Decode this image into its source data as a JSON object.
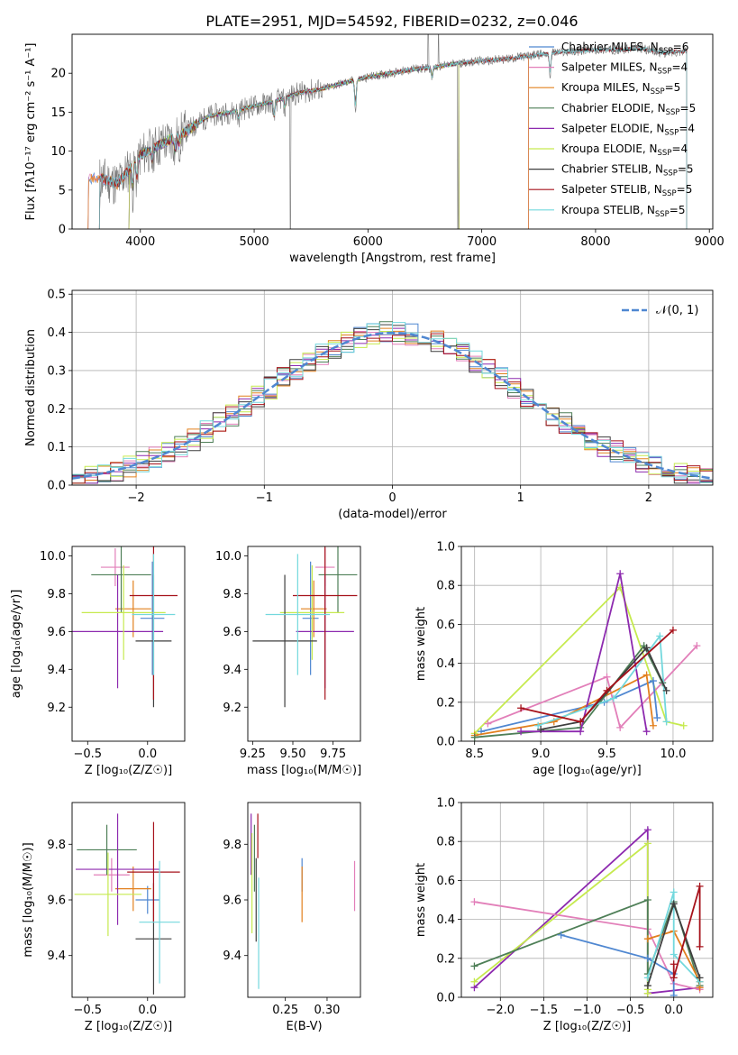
{
  "figure_title": "PLATE=2951, MJD=54592, FIBERID=0232, z=0.046",
  "colors": {
    "chabrier_miles": "#4f87d1",
    "salpeter_miles": "#e27fb9",
    "kroupa_miles": "#e2801e",
    "chabrier_elodie": "#4e7f57",
    "salpeter_elodie": "#8d2aaf",
    "kroupa_elodie": "#c6ea4f",
    "chabrier_stelib": "#3f3f3f",
    "salpeter_stelib": "#a6121b",
    "kroupa_stelib": "#73d8dd",
    "gaussian": "#4f87d1"
  },
  "chart_data": [
    {
      "id": "spectrum",
      "type": "line",
      "xlabel": "wavelength [Angstrom, rest frame]",
      "ylabel": "Flux [fλ10⁻¹⁷ erg cm⁻² s⁻¹ A⁻¹]",
      "xlim": [
        3400,
        9030
      ],
      "ylim": [
        0,
        25
      ],
      "xticks": [
        "4000",
        "5000",
        "6000",
        "7000",
        "8000",
        "9000"
      ],
      "yticks": [
        "0",
        "5",
        "10",
        "15",
        "20"
      ],
      "legend_position": "upper right",
      "legend": [
        {
          "label": "Chabrier MILES, N",
          "sub": "SSP",
          "suffix": "=6",
          "color_key": "chabrier_miles"
        },
        {
          "label": "Salpeter MILES, N",
          "sub": "SSP",
          "suffix": "=4",
          "color_key": "salpeter_miles"
        },
        {
          "label": "Kroupa MILES, N",
          "sub": "SSP",
          "suffix": "=5",
          "color_key": "kroupa_miles"
        },
        {
          "label": "Chabrier ELODIE, N",
          "sub": "SSP",
          "suffix": "=5",
          "color_key": "chabrier_elodie"
        },
        {
          "label": "Salpeter ELODIE, N",
          "sub": "SSP",
          "suffix": "=4",
          "color_key": "salpeter_elodie"
        },
        {
          "label": "Kroupa ELODIE, N",
          "sub": "SSP",
          "suffix": "=4",
          "color_key": "kroupa_elodie"
        },
        {
          "label": "Chabrier STELIB, N",
          "sub": "SSP",
          "suffix": "=5",
          "color_key": "chabrier_stelib"
        },
        {
          "label": "Salpeter STELIB, N",
          "sub": "SSP",
          "suffix": "=5",
          "color_key": "salpeter_stelib"
        },
        {
          "label": "Kroupa STELIB, N",
          "sub": "SSP",
          "suffix": "=5",
          "color_key": "kroupa_stelib"
        }
      ],
      "data_profile": {
        "x": [
          3650,
          3800,
          4000,
          4200,
          4400,
          4600,
          4800,
          5000,
          5200,
          5400,
          5600,
          5800,
          6000,
          6200,
          6400,
          6600,
          6800,
          7000,
          7200,
          7400,
          7600,
          7800,
          8000,
          8200,
          8400,
          8600,
          8800
        ],
        "y": [
          6.5,
          5.8,
          9.5,
          11.0,
          12.5,
          14.5,
          15.0,
          15.8,
          16.5,
          17.5,
          18.0,
          18.8,
          19.5,
          20.0,
          20.5,
          20.8,
          21.3,
          21.6,
          21.8,
          22.2,
          22.6,
          22.8,
          23.0,
          23.0,
          23.2,
          22.6,
          22.9
        ]
      },
      "model_ranges": {
        "miles": [
          3540,
          7410
        ],
        "elodie": [
          3900,
          6800
        ],
        "stelib": [
          3640,
          8800
        ]
      },
      "absorption_features": [
        {
          "x": 3934,
          "depth": 3.5
        },
        {
          "x": 3969,
          "depth": 3.0
        },
        {
          "x": 4102,
          "depth": 1.5
        },
        {
          "x": 4304,
          "depth": 2.0
        },
        {
          "x": 4340,
          "depth": 1.5
        },
        {
          "x": 4861,
          "depth": 1.2
        },
        {
          "x": 5175,
          "depth": 2.5
        },
        {
          "x": 5270,
          "depth": 1.5
        },
        {
          "x": 5890,
          "depth": 4.0
        },
        {
          "x": 6563,
          "depth": 1.5
        },
        {
          "x": 7600,
          "depth": 3.0
        }
      ],
      "data_spikes": [
        {
          "x": 3640,
          "low": 0
        },
        {
          "x": 5318,
          "low": 0
        },
        {
          "x": 6530,
          "high": 25
        },
        {
          "x": 6620,
          "high": 25
        },
        {
          "x": 6790,
          "low": 0
        }
      ]
    },
    {
      "id": "residuals",
      "type": "histogram",
      "xlabel": "(data-model)/error",
      "ylabel": "Normed distribution",
      "xlim": [
        -2.5,
        2.5
      ],
      "ylim": [
        0,
        0.51
      ],
      "xticks": [
        "−2",
        "−1",
        "0",
        "1",
        "2"
      ],
      "yticks": [
        "0.0",
        "0.1",
        "0.2",
        "0.3",
        "0.4",
        "0.5"
      ],
      "grid": true,
      "legend_position": "upper right",
      "legend": [
        {
          "label": "𝒩(0, 1)",
          "color_key": "gaussian",
          "style": "dashed"
        }
      ],
      "bin_width": 0.1,
      "bin_start": -2.5,
      "base_seed": 7
    },
    {
      "id": "age_vs_Z",
      "type": "errorbar",
      "xlabel": "Z [log₁₀(Z/Z☉)]",
      "ylabel": "age  [log₁₀(age/yr)]",
      "xlim": [
        -0.63,
        0.31
      ],
      "ylim": [
        9.02,
        10.05
      ],
      "xticks": [
        "−0.5",
        "0.0"
      ],
      "ytick_values": [
        9.2,
        9.4,
        9.6,
        9.8,
        10.0
      ],
      "yticks": [
        "9.2",
        "9.4",
        "9.6",
        "9.8",
        "10.0"
      ],
      "points": [
        {
          "color_key": "chabrier_miles",
          "x": 0.04,
          "xerr": 0.1,
          "y": 9.67,
          "yerr": 0.3
        },
        {
          "color_key": "salpeter_miles",
          "x": -0.27,
          "xerr": 0.12,
          "y": 9.94,
          "yerr": 0.1
        },
        {
          "color_key": "kroupa_miles",
          "x": -0.12,
          "xerr": 0.15,
          "y": 9.72,
          "yerr": 0.15
        },
        {
          "color_key": "chabrier_elodie",
          "x": -0.22,
          "xerr": 0.25,
          "y": 9.9,
          "yerr": 0.2
        },
        {
          "color_key": "salpeter_elodie",
          "x": -0.25,
          "xerr": 0.38,
          "y": 9.6,
          "yerr": 0.3
        },
        {
          "color_key": "kroupa_elodie",
          "x": -0.2,
          "xerr": 0.35,
          "y": 9.7,
          "yerr": 0.25
        },
        {
          "color_key": "chabrier_stelib",
          "x": 0.05,
          "xerr": 0.15,
          "y": 9.55,
          "yerr": 0.35
        },
        {
          "color_key": "salpeter_stelib",
          "x": 0.05,
          "xerr": 0.2,
          "y": 9.79,
          "yerr": 0.55
        },
        {
          "color_key": "kroupa_stelib",
          "x": 0.05,
          "xerr": 0.18,
          "y": 9.69,
          "yerr": 0.32
        }
      ]
    },
    {
      "id": "age_vs_mass",
      "type": "errorbar",
      "xlabel": "mass [log₁₀(M/M☉)]",
      "ylabel": "",
      "xlim": [
        9.22,
        9.92
      ],
      "ylim": [
        9.02,
        10.05
      ],
      "xtick_values": [
        9.25,
        9.5,
        9.75
      ],
      "xticks": [
        "9.25",
        "9.50",
        "9.75"
      ],
      "ytick_values": [
        9.2,
        9.4,
        9.6,
        9.8,
        10.0
      ],
      "yticks": [
        "9.2",
        "9.4",
        "9.6",
        "9.8",
        "10.0"
      ],
      "points": [
        {
          "color_key": "chabrier_miles",
          "x": 9.61,
          "xerr": 0.05,
          "y": 9.67,
          "yerr": 0.3
        },
        {
          "color_key": "salpeter_miles",
          "x": 9.7,
          "xerr": 0.06,
          "y": 9.94,
          "yerr": 0.1
        },
        {
          "color_key": "kroupa_miles",
          "x": 9.63,
          "xerr": 0.08,
          "y": 9.72,
          "yerr": 0.15
        },
        {
          "color_key": "chabrier_elodie",
          "x": 9.78,
          "xerr": 0.12,
          "y": 9.9,
          "yerr": 0.2
        },
        {
          "color_key": "salpeter_elodie",
          "x": 9.7,
          "xerr": 0.18,
          "y": 9.6,
          "yerr": 0.3
        },
        {
          "color_key": "kroupa_elodie",
          "x": 9.62,
          "xerr": 0.2,
          "y": 9.7,
          "yerr": 0.25
        },
        {
          "color_key": "chabrier_stelib",
          "x": 9.45,
          "xerr": 0.2,
          "y": 9.55,
          "yerr": 0.35
        },
        {
          "color_key": "salpeter_stelib",
          "x": 9.7,
          "xerr": 0.2,
          "y": 9.79,
          "yerr": 0.55
        },
        {
          "color_key": "kroupa_stelib",
          "x": 9.53,
          "xerr": 0.2,
          "y": 9.69,
          "yerr": 0.32
        }
      ]
    },
    {
      "id": "mw_vs_age",
      "type": "line",
      "xlabel": "age  [log₁₀(age/yr)]",
      "ylabel": "mass weight",
      "xlim": [
        8.4,
        10.3
      ],
      "ylim": [
        0,
        1
      ],
      "xtick_values": [
        8.5,
        9.0,
        9.5,
        10.0
      ],
      "xticks": [
        "8.5",
        "9.0",
        "9.5",
        "10.0"
      ],
      "ytick_values": [
        0,
        0.2,
        0.4,
        0.6,
        0.8,
        1.0
      ],
      "yticks": [
        "0.0",
        "0.2",
        "0.4",
        "0.6",
        "0.8",
        "1.0"
      ],
      "grid": true,
      "series": [
        {
          "color_key": "kroupa_elodie",
          "x": [
            8.5,
            9.6,
            9.95,
            10.08
          ],
          "y": [
            0.04,
            0.79,
            0.1,
            0.08
          ]
        },
        {
          "color_key": "salpeter_miles",
          "x": [
            8.6,
            9.5,
            9.6,
            10.18
          ],
          "y": [
            0.09,
            0.33,
            0.07,
            0.49
          ]
        },
        {
          "color_key": "chabrier_miles",
          "x": [
            8.55,
            9.48,
            9.85,
            9.88
          ],
          "y": [
            0.05,
            0.2,
            0.31,
            0.12
          ]
        },
        {
          "color_key": "kroupa_miles",
          "x": [
            8.5,
            9.1,
            9.8,
            9.85
          ],
          "y": [
            0.03,
            0.1,
            0.34,
            0.08
          ]
        },
        {
          "color_key": "chabrier_elodie",
          "x": [
            8.5,
            9.3,
            9.78,
            9.92
          ],
          "y": [
            0.02,
            0.07,
            0.49,
            0.3
          ]
        },
        {
          "color_key": "salpeter_elodie",
          "x": [
            8.85,
            9.3,
            9.6,
            9.8
          ],
          "y": [
            0.05,
            0.05,
            0.86,
            0.05
          ]
        },
        {
          "color_key": "kroupa_stelib",
          "x": [
            8.98,
            9.55,
            9.9,
            9.95
          ],
          "y": [
            0.08,
            0.22,
            0.54,
            0.1
          ]
        },
        {
          "color_key": "chabrier_stelib",
          "x": [
            9.0,
            9.3,
            9.8,
            9.95
          ],
          "y": [
            0.06,
            0.1,
            0.48,
            0.26
          ]
        },
        {
          "color_key": "salpeter_stelib",
          "x": [
            8.85,
            9.3,
            9.5,
            10.0
          ],
          "y": [
            0.17,
            0.1,
            0.26,
            0.57
          ]
        }
      ]
    },
    {
      "id": "mass_vs_Z",
      "type": "errorbar",
      "xlabel": "Z [log₁₀(Z/Z☉)]",
      "ylabel": "mass [log₁₀(M/M☉)]",
      "xlim": [
        -0.63,
        0.31
      ],
      "ylim": [
        9.25,
        9.95
      ],
      "xticks": [
        "−0.5",
        "0.0"
      ],
      "ytick_values": [
        9.4,
        9.6,
        9.8
      ],
      "yticks": [
        "9.4",
        "9.6",
        "9.8"
      ],
      "points": [
        {
          "color_key": "chabrier_miles",
          "x": 0.0,
          "xerr": 0.1,
          "y": 9.6,
          "yerr": 0.05
        },
        {
          "color_key": "salpeter_miles",
          "x": -0.3,
          "xerr": 0.15,
          "y": 9.69,
          "yerr": 0.06
        },
        {
          "color_key": "kroupa_miles",
          "x": -0.12,
          "xerr": 0.15,
          "y": 9.64,
          "yerr": 0.08
        },
        {
          "color_key": "chabrier_elodie",
          "x": -0.34,
          "xerr": 0.25,
          "y": 9.78,
          "yerr": 0.09
        },
        {
          "color_key": "salpeter_elodie",
          "x": -0.25,
          "xerr": 0.35,
          "y": 9.71,
          "yerr": 0.2
        },
        {
          "color_key": "kroupa_elodie",
          "x": -0.33,
          "xerr": 0.28,
          "y": 9.62,
          "yerr": 0.15
        },
        {
          "color_key": "chabrier_stelib",
          "x": 0.05,
          "xerr": 0.15,
          "y": 9.46,
          "yerr": 0.2
        },
        {
          "color_key": "salpeter_stelib",
          "x": 0.05,
          "xerr": 0.22,
          "y": 9.7,
          "yerr": 0.18
        },
        {
          "color_key": "kroupa_stelib",
          "x": 0.1,
          "xerr": 0.17,
          "y": 9.52,
          "yerr": 0.22
        }
      ]
    },
    {
      "id": "mass_vs_EBV",
      "type": "errorbar",
      "xlabel": "E(B-V)",
      "ylabel": "",
      "xlim": [
        0.205,
        0.34
      ],
      "ylim": [
        9.25,
        9.95
      ],
      "xtick_values": [
        0.25,
        0.3
      ],
      "xticks": [
        "0.25",
        "0.30"
      ],
      "ytick_values": [
        9.4,
        9.6,
        9.8
      ],
      "yticks": [
        "9.4",
        "9.6",
        "9.8"
      ],
      "points": [
        {
          "color_key": "chabrier_miles",
          "x": 0.27,
          "xerr": 0,
          "y": 9.69,
          "yerr": 0.06
        },
        {
          "color_key": "salpeter_miles",
          "x": 0.333,
          "xerr": 0,
          "y": 9.65,
          "yerr": 0.09
        },
        {
          "color_key": "kroupa_miles",
          "x": 0.27,
          "xerr": 0,
          "y": 9.62,
          "yerr": 0.1
        },
        {
          "color_key": "chabrier_elodie",
          "x": 0.213,
          "xerr": 0,
          "y": 9.75,
          "yerr": 0.12
        },
        {
          "color_key": "salpeter_elodie",
          "x": 0.209,
          "xerr": 0,
          "y": 9.8,
          "yerr": 0.11
        },
        {
          "color_key": "kroupa_elodie",
          "x": 0.21,
          "xerr": 0,
          "y": 9.66,
          "yerr": 0.18
        },
        {
          "color_key": "chabrier_stelib",
          "x": 0.215,
          "xerr": 0,
          "y": 9.6,
          "yerr": 0.15
        },
        {
          "color_key": "salpeter_stelib",
          "x": 0.217,
          "xerr": 0,
          "y": 9.83,
          "yerr": 0.08
        },
        {
          "color_key": "kroupa_stelib",
          "x": 0.218,
          "xerr": 0,
          "y": 9.48,
          "yerr": 0.2
        }
      ]
    },
    {
      "id": "mw_vs_Z",
      "type": "line",
      "xlabel": "Z [log₁₀(Z/Z☉)]",
      "ylabel": "mass weight",
      "xlim": [
        -2.45,
        0.45
      ],
      "ylim": [
        0,
        1
      ],
      "xtick_values": [
        -2.0,
        -1.5,
        -1.0,
        -0.5,
        0.0
      ],
      "xticks": [
        "−2.0",
        "−1.5",
        "−1.0",
        "−0.5",
        "0.0"
      ],
      "ytick_values": [
        0,
        0.2,
        0.4,
        0.6,
        0.8,
        1.0
      ],
      "yticks": [
        "0.0",
        "0.2",
        "0.4",
        "0.6",
        "0.8",
        "1.0"
      ],
      "grid": true,
      "series": [
        {
          "color_key": "salpeter_elodie",
          "x": [
            -2.3,
            -0.3,
            -0.3,
            0.3
          ],
          "y": [
            0.05,
            0.86,
            0.02,
            0.05
          ]
        },
        {
          "color_key": "kroupa_elodie",
          "x": [
            -2.3,
            -0.3,
            -0.3,
            -0.3
          ],
          "y": [
            0.08,
            0.79,
            0.04,
            0.02
          ]
        },
        {
          "color_key": "salpeter_miles",
          "x": [
            -2.3,
            -0.3,
            0.0,
            0.3
          ],
          "y": [
            0.49,
            0.35,
            0.07,
            0.04
          ]
        },
        {
          "color_key": "chabrier_elodie",
          "x": [
            -2.3,
            -0.3,
            -0.3,
            0.0,
            0.3
          ],
          "y": [
            0.16,
            0.5,
            0.12,
            0.49,
            0.06
          ]
        },
        {
          "color_key": "chabrier_miles",
          "x": [
            -1.3,
            -0.3,
            0.0,
            0.0
          ],
          "y": [
            0.32,
            0.2,
            0.12,
            0.01
          ]
        },
        {
          "color_key": "kroupa_miles",
          "x": [
            -0.3,
            0.0,
            0.3,
            0.3
          ],
          "y": [
            0.3,
            0.34,
            0.08,
            0.05
          ]
        },
        {
          "color_key": "kroupa_stelib",
          "x": [
            -0.3,
            0.0,
            0.0,
            0.3
          ],
          "y": [
            0.1,
            0.54,
            0.22,
            0.08
          ]
        },
        {
          "color_key": "chabrier_stelib",
          "x": [
            -0.3,
            0.0,
            0.3
          ],
          "y": [
            0.06,
            0.48,
            0.1
          ]
        },
        {
          "color_key": "salpeter_stelib",
          "x": [
            0.0,
            0.0,
            0.3,
            0.3
          ],
          "y": [
            0.17,
            0.1,
            0.57,
            0.26
          ]
        }
      ]
    }
  ]
}
